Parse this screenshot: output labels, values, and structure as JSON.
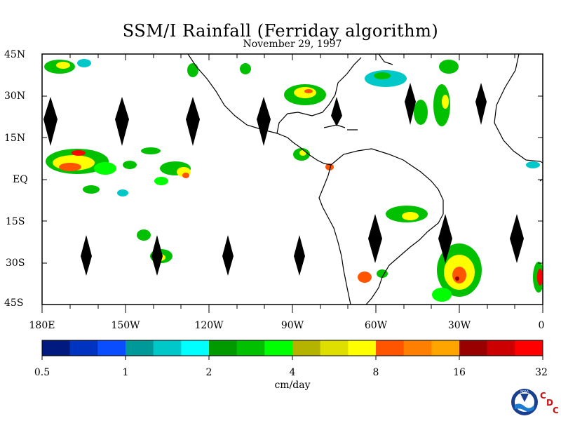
{
  "title": "SSM/I Rainfall (Ferriday algorithm)",
  "subtitle": "November 29, 1997",
  "lat_labels": [
    "45N",
    "30N",
    "15N",
    "EQ",
    "15S",
    "30S",
    "45S"
  ],
  "lon_labels": [
    "180E",
    "150W",
    "120W",
    "90W",
    "60W",
    "30W",
    "0"
  ],
  "colorbar": {
    "units": "cm/day",
    "tick_labels": [
      "0.5",
      "1",
      "2",
      "4",
      "8",
      "16",
      "32"
    ],
    "colors": [
      "#001a80",
      "#0033c0",
      "#0a4cff",
      "#00999a",
      "#00c8c8",
      "#00ffff",
      "#009900",
      "#00c000",
      "#00ff00",
      "#b3b300",
      "#dede00",
      "#ffff00",
      "#ff5500",
      "#ff8000",
      "#ffa500",
      "#990000",
      "#cc0000",
      "#ff0000"
    ]
  },
  "logo": {
    "noaa_text": "NOAA",
    "c1": "C",
    "d": "D",
    "c2": "C"
  },
  "map_extent": {
    "lon_min": -180,
    "lon_max": 0,
    "lat_min": -45,
    "lat_max": 45
  }
}
